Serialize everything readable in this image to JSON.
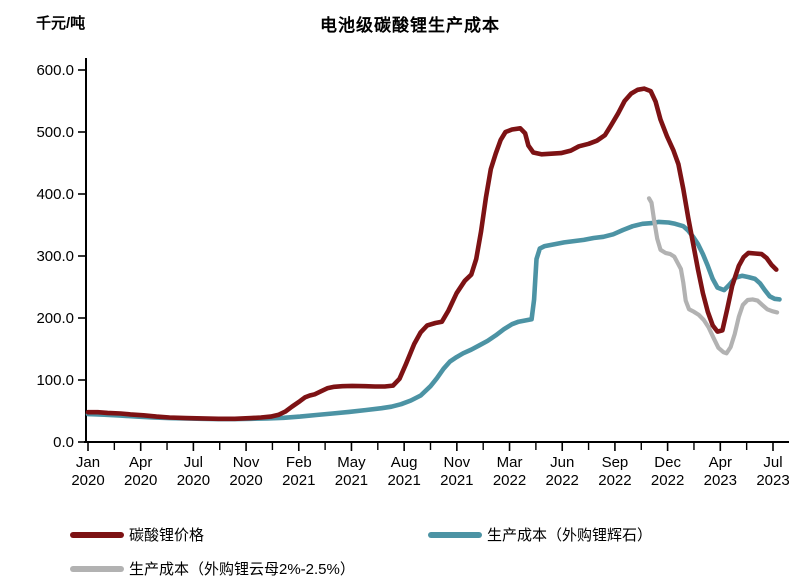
{
  "header": {
    "title": "电池级碳酸锂生产成本",
    "unit_label": "千元/吨"
  },
  "chart_data": {
    "type": "line",
    "title": "电池级碳酸锂生产成本",
    "ylabel": "千元/吨",
    "xlabel": "",
    "ylim": [
      0,
      600
    ],
    "grid": false,
    "legend_position": "bottom",
    "y_ticks": [
      0,
      100,
      200,
      300,
      400,
      500,
      600
    ],
    "y_tick_labels": [
      "0.0",
      "100.0",
      "200.0",
      "300.0",
      "400.0",
      "500.0",
      "600.0"
    ],
    "x_tick_labels": [
      {
        "month": "Jan",
        "year": "2020"
      },
      {
        "month": "Apr",
        "year": "2020"
      },
      {
        "month": "Jul",
        "year": "2020"
      },
      {
        "month": "Nov",
        "year": "2020"
      },
      {
        "month": "Feb",
        "year": "2021"
      },
      {
        "month": "May",
        "year": "2021"
      },
      {
        "month": "Aug",
        "year": "2021"
      },
      {
        "month": "Nov",
        "year": "2021"
      },
      {
        "month": "Mar",
        "year": "2022"
      },
      {
        "month": "Jun",
        "year": "2022"
      },
      {
        "month": "Sep",
        "year": "2022"
      },
      {
        "month": "Dec",
        "year": "2022"
      },
      {
        "month": "Apr",
        "year": "2023"
      },
      {
        "month": "Jul",
        "year": "2023"
      }
    ],
    "x_tick_month_index": [
      0,
      3,
      6,
      10,
      13,
      16,
      19,
      22,
      26,
      29,
      32,
      35,
      39,
      42
    ],
    "x_unit": "months since Jan 2020 (values in 千元/吨)",
    "series": [
      {
        "name": "碳酸锂价格",
        "color": "#7D1214",
        "zorder": 3,
        "points": [
          [
            0,
            48
          ],
          [
            0.6,
            48
          ],
          [
            1.2,
            47
          ],
          [
            2,
            46
          ],
          [
            2.6,
            44.5
          ],
          [
            3.4,
            43
          ],
          [
            4.2,
            41
          ],
          [
            5,
            39.5
          ],
          [
            6,
            38.5
          ],
          [
            7,
            38
          ],
          [
            8,
            37.5
          ],
          [
            9,
            37.5
          ],
          [
            10,
            38.5
          ],
          [
            10.6,
            39.5
          ],
          [
            11.2,
            41
          ],
          [
            11.7,
            44
          ],
          [
            12.1,
            49
          ],
          [
            12.5,
            57
          ],
          [
            13,
            66
          ],
          [
            13.3,
            72
          ],
          [
            13.6,
            75
          ],
          [
            13.9,
            77
          ],
          [
            14.3,
            82
          ],
          [
            14.7,
            87
          ],
          [
            15.1,
            89
          ],
          [
            15.6,
            90
          ],
          [
            16.2,
            90.5
          ],
          [
            17,
            90
          ],
          [
            17.6,
            89.5
          ],
          [
            18.2,
            89.5
          ],
          [
            18.7,
            91
          ],
          [
            19.1,
            102
          ],
          [
            19.5,
            126
          ],
          [
            20,
            158
          ],
          [
            20.4,
            177
          ],
          [
            20.8,
            188
          ],
          [
            21.3,
            192
          ],
          [
            21.7,
            194
          ],
          [
            22.1,
            212
          ],
          [
            22.6,
            240
          ],
          [
            23.1,
            260
          ],
          [
            23.5,
            270
          ],
          [
            23.8,
            295
          ],
          [
            24.1,
            340
          ],
          [
            24.4,
            395
          ],
          [
            24.7,
            440
          ],
          [
            25,
            465
          ],
          [
            25.3,
            487
          ],
          [
            25.6,
            500
          ],
          [
            26,
            504
          ],
          [
            26.5,
            506
          ],
          [
            26.8,
            498
          ],
          [
            27,
            478
          ],
          [
            27.3,
            467
          ],
          [
            27.8,
            464
          ],
          [
            28.4,
            465
          ],
          [
            29,
            466
          ],
          [
            29.6,
            470
          ],
          [
            30.1,
            477
          ],
          [
            30.7,
            481
          ],
          [
            31.2,
            486
          ],
          [
            31.7,
            495
          ],
          [
            32.1,
            512
          ],
          [
            32.5,
            530
          ],
          [
            32.9,
            550
          ],
          [
            33.3,
            562
          ],
          [
            33.7,
            568
          ],
          [
            34.1,
            570
          ],
          [
            34.5,
            566
          ],
          [
            34.8,
            549
          ],
          [
            35.1,
            520
          ],
          [
            35.5,
            493
          ],
          [
            35.9,
            470
          ],
          [
            36.2,
            448
          ],
          [
            36.5,
            408
          ],
          [
            36.8,
            362
          ],
          [
            37.1,
            320
          ],
          [
            37.4,
            278
          ],
          [
            37.7,
            240
          ],
          [
            38,
            210
          ],
          [
            38.3,
            188
          ],
          [
            38.6,
            178
          ],
          [
            38.9,
            180
          ],
          [
            39.2,
            215
          ],
          [
            39.5,
            252
          ],
          [
            39.9,
            284
          ],
          [
            40.2,
            298
          ],
          [
            40.5,
            305
          ],
          [
            40.9,
            304
          ],
          [
            41.3,
            303
          ],
          [
            41.6,
            297
          ],
          [
            41.9,
            286
          ],
          [
            42.2,
            278
          ]
        ]
      },
      {
        "name": "生产成本（外购锂辉石）",
        "color": "#4C93A4",
        "zorder": 1,
        "points": [
          [
            0,
            45
          ],
          [
            1,
            44
          ],
          [
            2,
            42.5
          ],
          [
            3,
            41
          ],
          [
            4,
            39.5
          ],
          [
            5,
            38.5
          ],
          [
            6,
            38
          ],
          [
            7,
            37.5
          ],
          [
            8,
            37
          ],
          [
            9,
            37
          ],
          [
            10,
            37.5
          ],
          [
            11,
            38
          ],
          [
            12,
            39
          ],
          [
            13,
            41
          ],
          [
            14,
            43.5
          ],
          [
            15,
            46
          ],
          [
            16,
            48.5
          ],
          [
            17,
            51.5
          ],
          [
            18,
            54.5
          ],
          [
            18.6,
            57
          ],
          [
            19.2,
            61
          ],
          [
            19.8,
            67
          ],
          [
            20.4,
            75
          ],
          [
            21,
            90
          ],
          [
            21.4,
            103
          ],
          [
            21.8,
            118
          ],
          [
            22.2,
            130
          ],
          [
            22.6,
            137
          ],
          [
            23,
            143
          ],
          [
            23.5,
            149
          ],
          [
            24,
            156
          ],
          [
            24.5,
            163
          ],
          [
            25,
            172
          ],
          [
            25.5,
            182
          ],
          [
            26,
            190
          ],
          [
            26.4,
            194
          ],
          [
            26.8,
            196
          ],
          [
            27.2,
            198
          ],
          [
            27.35,
            230
          ],
          [
            27.5,
            295
          ],
          [
            27.7,
            312
          ],
          [
            28,
            316
          ],
          [
            28.6,
            319
          ],
          [
            29.2,
            322
          ],
          [
            29.8,
            324
          ],
          [
            30.4,
            326
          ],
          [
            31,
            329
          ],
          [
            31.6,
            331
          ],
          [
            32.2,
            335
          ],
          [
            32.8,
            342
          ],
          [
            33.4,
            348
          ],
          [
            34,
            352
          ],
          [
            34.6,
            353
          ],
          [
            35,
            355
          ],
          [
            35.6,
            354
          ],
          [
            36,
            352
          ],
          [
            36.5,
            348
          ],
          [
            36.8,
            341
          ],
          [
            37.1,
            331
          ],
          [
            37.4,
            319
          ],
          [
            37.7,
            303
          ],
          [
            38,
            284
          ],
          [
            38.3,
            263
          ],
          [
            38.6,
            249
          ],
          [
            39,
            245
          ],
          [
            39.3,
            253
          ],
          [
            39.7,
            265
          ],
          [
            40.1,
            268
          ],
          [
            40.5,
            266
          ],
          [
            40.9,
            263
          ],
          [
            41.2,
            256
          ],
          [
            41.5,
            245
          ],
          [
            41.8,
            235
          ],
          [
            42.1,
            231
          ],
          [
            42.4,
            230
          ]
        ]
      },
      {
        "name": "生产成本（外购锂云母2%-2.5%）",
        "color": "#B2B2B2",
        "zorder": 2,
        "points": [
          [
            34.4,
            393
          ],
          [
            34.55,
            386
          ],
          [
            34.7,
            360
          ],
          [
            34.9,
            328
          ],
          [
            35.1,
            310
          ],
          [
            35.4,
            305
          ],
          [
            35.7,
            303
          ],
          [
            35.95,
            299
          ],
          [
            36.15,
            289
          ],
          [
            36.35,
            279
          ],
          [
            36.5,
            257
          ],
          [
            36.65,
            228
          ],
          [
            36.85,
            214
          ],
          [
            37.15,
            210
          ],
          [
            37.45,
            205
          ],
          [
            37.75,
            197
          ],
          [
            38.05,
            185
          ],
          [
            38.35,
            168
          ],
          [
            38.65,
            152
          ],
          [
            38.95,
            145
          ],
          [
            39.15,
            143
          ],
          [
            39.4,
            153
          ],
          [
            39.65,
            174
          ],
          [
            39.9,
            202
          ],
          [
            40.15,
            221
          ],
          [
            40.45,
            229
          ],
          [
            40.75,
            230
          ],
          [
            41.05,
            228
          ],
          [
            41.35,
            221
          ],
          [
            41.65,
            214
          ],
          [
            41.95,
            211
          ],
          [
            42.25,
            209
          ]
        ]
      }
    ]
  }
}
